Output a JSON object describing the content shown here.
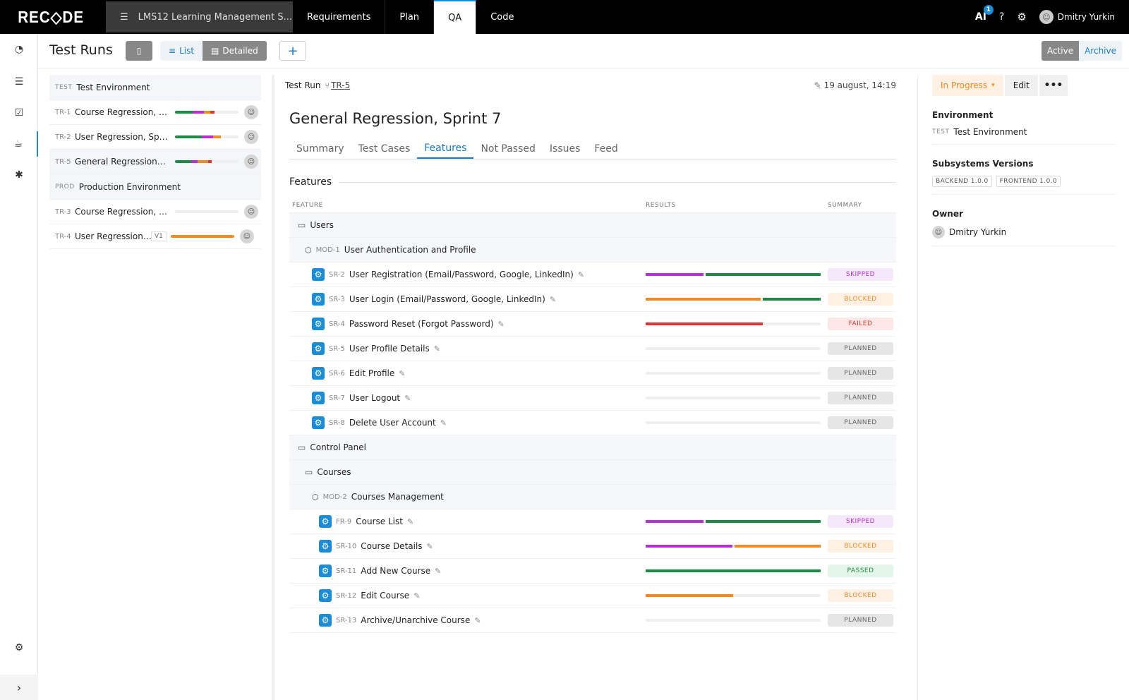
{
  "app": {
    "logo": "REC◇DE",
    "project": "LMS12 Learning Management S...",
    "nav_tabs": [
      "Requirements",
      "Plan",
      "QA",
      "Code"
    ],
    "ai_label": "AI",
    "ai_badge": "1",
    "user": "Dmitry Yurkin"
  },
  "header": {
    "title": "Test Runs",
    "view_list": "List",
    "view_detailed": "Detailed",
    "plus": "+",
    "active": "Active",
    "archive": "Archive"
  },
  "runs": {
    "env_test": {
      "tag": "TEST",
      "name": "Test Environment"
    },
    "env_prod": {
      "tag": "PROD",
      "name": "Production Environment"
    },
    "items": [
      {
        "id": "TR-1",
        "name": "Course Regression, Sp...",
        "segments": [
          {
            "c": "#1e8a44",
            "w": 28
          },
          {
            "c": "#b72fd6",
            "w": 18
          },
          {
            "c": "#f08a24",
            "w": 10
          },
          {
            "c": "#e23333",
            "w": 6
          }
        ]
      },
      {
        "id": "TR-2",
        "name": "User Regression, Sprin...",
        "segments": [
          {
            "c": "#1e8a44",
            "w": 42
          },
          {
            "c": "#b72fd6",
            "w": 18
          },
          {
            "c": "#f08a24",
            "w": 12
          }
        ]
      },
      {
        "id": "TR-5",
        "name": "General Regression, S...",
        "segments": [
          {
            "c": "#1e8a44",
            "w": 26
          },
          {
            "c": "#b72fd6",
            "w": 10
          },
          {
            "c": "#f08a24",
            "w": 16
          },
          {
            "c": "#e23333",
            "w": 6
          }
        ]
      },
      {
        "id": "TR-3",
        "name": "Course Regression, Sp...",
        "segments": []
      },
      {
        "id": "TR-4",
        "name": "User Regression Pr...",
        "version": "V1",
        "segments": [
          {
            "c": "#f08a24",
            "w": 100
          }
        ]
      }
    ]
  },
  "main": {
    "run_label": "Test Run",
    "run_id": "TR-5",
    "date": "19 august, 14:19",
    "title": "General Regression, Sprint 7",
    "tabs": [
      "Summary",
      "Test Cases",
      "Features",
      "Not Passed",
      "Issues",
      "Feed"
    ],
    "section": "Features",
    "columns": [
      "FEATURE",
      "RESULTS",
      "SUMMARY"
    ],
    "rows": [
      {
        "kind": "folder",
        "indent": 1,
        "name": "Users"
      },
      {
        "kind": "module",
        "indent": 2,
        "id": "MOD-1",
        "name": "User Authentication and Profile"
      },
      {
        "kind": "feature",
        "indent": 3,
        "id": "SR-2",
        "name": "User Registration (Email/Password, Google, LinkedIn)",
        "badge": "SKIPPED",
        "segments": [
          {
            "c": "#b72fd6",
            "w": 33
          },
          {
            "c": "#1e8a44",
            "w": 66
          }
        ]
      },
      {
        "kind": "feature",
        "indent": 3,
        "id": "SR-3",
        "name": "User Login (Email/Password, Google, LinkedIn)",
        "badge": "BLOCKED",
        "segments": [
          {
            "c": "#f08a24",
            "w": 66
          },
          {
            "c": "#1e8a44",
            "w": 33
          }
        ]
      },
      {
        "kind": "feature",
        "indent": 3,
        "id": "SR-4",
        "name": "Password Reset (Forgot Password)",
        "badge": "FAILED",
        "segments": [
          {
            "c": "#e23333",
            "w": 67
          }
        ]
      },
      {
        "kind": "feature",
        "indent": 3,
        "id": "SR-5",
        "name": "User Profile Details",
        "badge": "PLANNED",
        "segments": []
      },
      {
        "kind": "feature",
        "indent": 3,
        "id": "SR-6",
        "name": "Edit Profile",
        "badge": "PLANNED",
        "segments": []
      },
      {
        "kind": "feature",
        "indent": 3,
        "id": "SR-7",
        "name": "User Logout",
        "badge": "PLANNED",
        "segments": []
      },
      {
        "kind": "feature",
        "indent": 3,
        "id": "SR-8",
        "name": "Delete User Account",
        "badge": "PLANNED",
        "segments": []
      },
      {
        "kind": "folder",
        "indent": 1,
        "name": "Control Panel"
      },
      {
        "kind": "folder",
        "indent": 2,
        "name": "Courses"
      },
      {
        "kind": "module",
        "indent": 3,
        "id": "MOD-2",
        "name": "Courses Management"
      },
      {
        "kind": "feature",
        "indent": 4,
        "id": "FR-9",
        "name": "Course List",
        "badge": "SKIPPED",
        "segments": [
          {
            "c": "#b72fd6",
            "w": 33
          },
          {
            "c": "#1e8a44",
            "w": 66
          }
        ]
      },
      {
        "kind": "feature",
        "indent": 4,
        "id": "SR-10",
        "name": "Course Details",
        "badge": "BLOCKED",
        "segments": [
          {
            "c": "#b72fd6",
            "w": 50
          },
          {
            "c": "#f08a24",
            "w": 50
          }
        ]
      },
      {
        "kind": "feature",
        "indent": 4,
        "id": "SR-11",
        "name": "Add New Course",
        "badge": "PASSED",
        "segments": [
          {
            "c": "#1e8a44",
            "w": 100
          }
        ]
      },
      {
        "kind": "feature",
        "indent": 4,
        "id": "SR-12",
        "name": "Edit Course",
        "badge": "BLOCKED",
        "segments": [
          {
            "c": "#f08a24",
            "w": 50
          }
        ]
      },
      {
        "kind": "feature",
        "indent": 4,
        "id": "SR-13",
        "name": "Archive/Unarchive Course",
        "badge": "PLANNED",
        "segments": []
      }
    ]
  },
  "right": {
    "status": "In Progress",
    "edit": "Edit",
    "more": "•••",
    "environment_label": "Environment",
    "environment_tag": "TEST",
    "environment_value": "Test Environment",
    "subsystems_label": "Subsystems Versions",
    "subsystems": [
      "BACKEND 1.0.0",
      "FRONTEND 1.0.0"
    ],
    "owner_label": "Owner",
    "owner": "Dmitry Yurkin"
  },
  "colors": {
    "accent": "#1a8cd8",
    "passed": "#1e8a44",
    "skipped": "#b72fd6",
    "blocked": "#f08a24",
    "failed": "#e23333"
  }
}
